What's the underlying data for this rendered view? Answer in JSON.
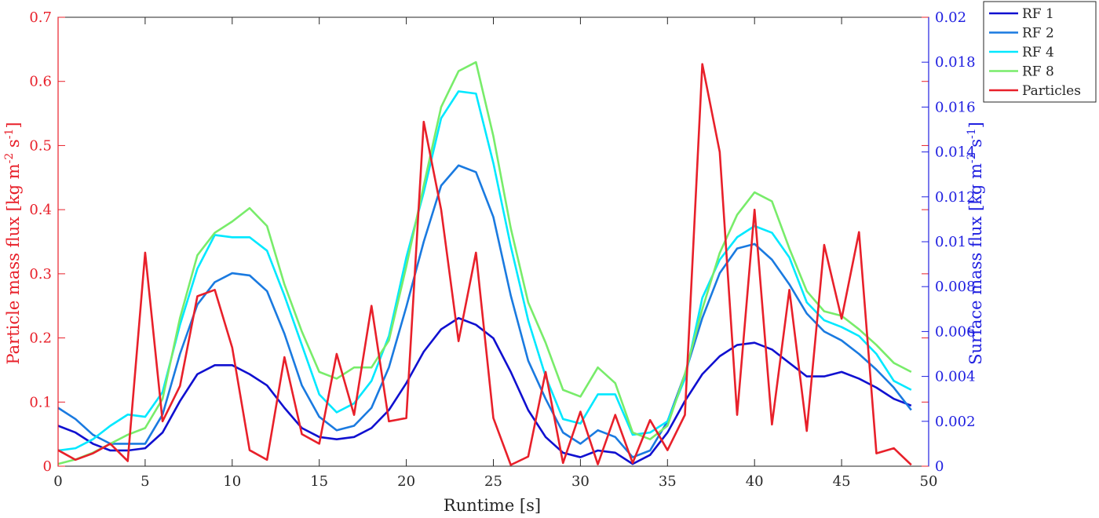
{
  "chart_data": {
    "type": "line",
    "xlabel": "Runtime [s]",
    "ylabel_left": "Particle mass flux [kg m^-2 s^-1]",
    "ylabel_right": "Surface mass flux [kg m^-2 s^-1]",
    "xlim": [
      0,
      50
    ],
    "ylim_left": [
      0,
      0.7
    ],
    "ylim_right": [
      0,
      0.02
    ],
    "xticks": [
      0,
      5,
      10,
      15,
      20,
      25,
      30,
      35,
      40,
      45,
      50
    ],
    "xtick_labels": [
      "0",
      "5",
      "10",
      "15",
      "20",
      "25",
      "30",
      "35",
      "40",
      "45",
      "50"
    ],
    "yticks_left": [
      0,
      0.1,
      0.2,
      0.3,
      0.4,
      0.5,
      0.6,
      0.7
    ],
    "ytick_labels_left": [
      "0",
      "0.1",
      "0.2",
      "0.3",
      "0.4",
      "0.5",
      "0.6",
      "0.7"
    ],
    "yticks_right": [
      0,
      0.002,
      0.004,
      0.006,
      0.008,
      0.01,
      0.012,
      0.014,
      0.016,
      0.018,
      0.02
    ],
    "ytick_labels_right": [
      "0",
      "0.002",
      "0.004",
      "0.006",
      "0.008",
      "0.01",
      "0.012",
      "0.014",
      "0.016",
      "0.018",
      "0.02"
    ],
    "grid": false,
    "legend_position": "top-right-outside",
    "left_axis_color": "#e8202a",
    "right_axis_color": "#2020e0",
    "x": [
      0,
      1,
      2,
      3,
      4,
      5,
      6,
      7,
      8,
      9,
      10,
      11,
      12,
      13,
      14,
      15,
      16,
      17,
      18,
      19,
      20,
      21,
      22,
      23,
      24,
      25,
      26,
      27,
      28,
      29,
      30,
      31,
      32,
      33,
      34,
      35,
      36,
      37,
      38,
      39,
      40,
      41,
      42,
      43,
      44,
      45,
      46,
      47,
      48,
      49
    ],
    "series": [
      {
        "name": "RF 1",
        "axis": "right",
        "color": "#1010d0",
        "values": [
          0.0018,
          0.0015,
          0.001,
          0.0007,
          0.0007,
          0.0008,
          0.0015,
          0.0029,
          0.0041,
          0.0045,
          0.0045,
          0.0041,
          0.0036,
          0.0026,
          0.0017,
          0.0013,
          0.0012,
          0.0013,
          0.0017,
          0.0025,
          0.0037,
          0.0051,
          0.0061,
          0.0066,
          0.0063,
          0.0057,
          0.0042,
          0.0025,
          0.0013,
          0.0006,
          0.0004,
          0.0007,
          0.0006,
          0.0001,
          0.0005,
          0.0015,
          0.0029,
          0.0041,
          0.0049,
          0.0054,
          0.0055,
          0.0052,
          0.0046,
          0.004,
          0.004,
          0.0042,
          0.0039,
          0.0035,
          0.003,
          0.0027
        ]
      },
      {
        "name": "RF 2",
        "axis": "right",
        "color": "#1a7ae0",
        "values": [
          0.0026,
          0.0021,
          0.0014,
          0.001,
          0.001,
          0.001,
          0.0023,
          0.005,
          0.0072,
          0.0082,
          0.0086,
          0.0085,
          0.0078,
          0.0059,
          0.0036,
          0.0022,
          0.0016,
          0.0018,
          0.0026,
          0.0044,
          0.0071,
          0.01,
          0.0125,
          0.0134,
          0.0131,
          0.0111,
          0.0076,
          0.0047,
          0.003,
          0.0015,
          0.001,
          0.0016,
          0.0013,
          0.0004,
          0.0007,
          0.002,
          0.0041,
          0.0066,
          0.0086,
          0.0097,
          0.0099,
          0.0092,
          0.0081,
          0.0068,
          0.006,
          0.0056,
          0.005,
          0.0043,
          0.0035,
          0.0025
        ]
      },
      {
        "name": "RF 4",
        "axis": "right",
        "color": "#00e8ff",
        "values": [
          0.0007,
          0.0008,
          0.0012,
          0.0018,
          0.0023,
          0.0022,
          0.0033,
          0.0063,
          0.0088,
          0.0103,
          0.0102,
          0.0102,
          0.0096,
          0.0076,
          0.0054,
          0.0032,
          0.0024,
          0.0028,
          0.0038,
          0.0058,
          0.0093,
          0.0122,
          0.0155,
          0.0167,
          0.0166,
          0.0135,
          0.0098,
          0.0065,
          0.004,
          0.0021,
          0.0019,
          0.0032,
          0.0032,
          0.0014,
          0.0015,
          0.002,
          0.0039,
          0.0075,
          0.0092,
          0.0102,
          0.0107,
          0.0104,
          0.0093,
          0.0073,
          0.0065,
          0.0062,
          0.0058,
          0.005,
          0.0038,
          0.0034
        ]
      },
      {
        "name": "RF 8",
        "axis": "right",
        "color": "#78ec6a",
        "values": [
          0.0001,
          0.0003,
          0.0006,
          0.001,
          0.0014,
          0.0017,
          0.003,
          0.0066,
          0.0094,
          0.0104,
          0.0109,
          0.0115,
          0.0107,
          0.0081,
          0.006,
          0.0042,
          0.0039,
          0.0044,
          0.0044,
          0.0056,
          0.0089,
          0.0125,
          0.016,
          0.0176,
          0.018,
          0.0147,
          0.0106,
          0.0073,
          0.0055,
          0.0034,
          0.0031,
          0.0044,
          0.0037,
          0.0015,
          0.0012,
          0.0018,
          0.0041,
          0.007,
          0.0095,
          0.0112,
          0.0122,
          0.0118,
          0.0097,
          0.0078,
          0.0069,
          0.0067,
          0.0061,
          0.0054,
          0.0046,
          0.0042
        ]
      },
      {
        "name": "Particles",
        "axis": "left",
        "color": "#e8202a",
        "values": [
          0.025,
          0.01,
          0.02,
          0.035,
          0.008,
          0.333,
          0.07,
          0.125,
          0.265,
          0.275,
          0.185,
          0.025,
          0.01,
          0.17,
          0.05,
          0.035,
          0.175,
          0.08,
          0.25,
          0.07,
          0.075,
          0.537,
          0.4,
          0.195,
          0.333,
          0.075,
          0.002,
          0.015,
          0.147,
          0.005,
          0.085,
          0.003,
          0.08,
          0.005,
          0.072,
          0.025,
          0.08,
          0.627,
          0.49,
          0.08,
          0.4,
          0.065,
          0.275,
          0.055,
          0.345,
          0.23,
          0.365,
          0.02,
          0.028,
          0.002
        ]
      }
    ]
  }
}
